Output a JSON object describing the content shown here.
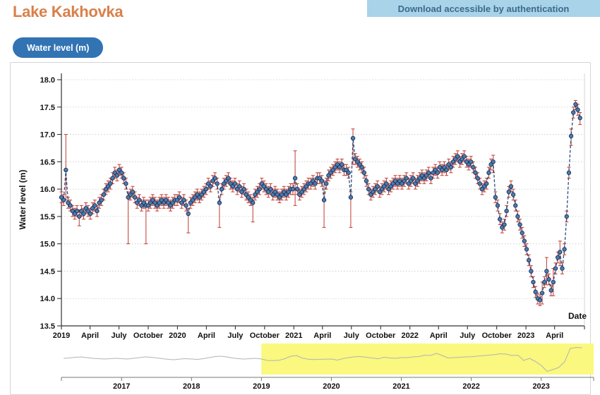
{
  "header": {
    "title": "Lake Kakhovka",
    "banner": "Download accessible by authentication",
    "tab_button": "Water level (m)"
  },
  "chart_data": {
    "type": "scatter",
    "title": "",
    "xlabel": "Date",
    "ylabel": "Water level (m)",
    "ylim": [
      13.5,
      18.0
    ],
    "grid": "horizontal-dotted",
    "legend": "none",
    "y_ticks": [
      13.5,
      14.0,
      14.5,
      15.0,
      15.5,
      16.0,
      16.5,
      17.0,
      17.5,
      18.0
    ],
    "x_ticks": [
      {
        "label": "2019",
        "day": 0
      },
      {
        "label": "April",
        "day": 90
      },
      {
        "label": "July",
        "day": 181
      },
      {
        "label": "October",
        "day": 273
      },
      {
        "label": "2020",
        "day": 365
      },
      {
        "label": "April",
        "day": 456
      },
      {
        "label": "July",
        "day": 547
      },
      {
        "label": "October",
        "day": 639
      },
      {
        "label": "2021",
        "day": 731
      },
      {
        "label": "April",
        "day": 821
      },
      {
        "label": "July",
        "day": 912
      },
      {
        "label": "October",
        "day": 1004
      },
      {
        "label": "2022",
        "day": 1096
      },
      {
        "label": "April",
        "day": 1186
      },
      {
        "label": "July",
        "day": 1277
      },
      {
        "label": "October",
        "day": 1369
      },
      {
        "label": "2023",
        "day": 1461
      },
      {
        "label": "April",
        "day": 1551
      }
    ],
    "series_start_date": "2019-01-01",
    "interval_days": 7,
    "values": [
      15.85,
      15.8,
      16.35,
      15.75,
      15.7,
      15.6,
      15.55,
      15.6,
      15.5,
      15.6,
      15.55,
      15.65,
      15.6,
      15.55,
      15.65,
      15.7,
      15.6,
      15.75,
      15.8,
      15.9,
      16.0,
      16.05,
      16.1,
      16.2,
      16.3,
      16.25,
      16.35,
      16.3,
      16.2,
      16.1,
      15.85,
      15.9,
      15.95,
      15.85,
      15.75,
      15.8,
      15.7,
      15.75,
      15.7,
      15.7,
      15.75,
      15.8,
      15.75,
      15.7,
      15.75,
      15.8,
      15.75,
      15.8,
      15.75,
      15.7,
      15.75,
      15.8,
      15.8,
      15.85,
      15.75,
      15.8,
      15.7,
      15.55,
      15.75,
      15.8,
      15.85,
      15.9,
      15.85,
      15.9,
      15.95,
      16.0,
      16.1,
      16.05,
      16.15,
      16.2,
      16.1,
      15.75,
      16.0,
      16.1,
      16.15,
      16.2,
      16.1,
      16.05,
      16.1,
      16.0,
      16.05,
      15.95,
      16.0,
      15.9,
      15.85,
      15.8,
      15.75,
      15.9,
      15.95,
      16.0,
      16.1,
      16.05,
      16.0,
      15.95,
      16.0,
      15.9,
      15.95,
      15.9,
      15.85,
      15.9,
      15.95,
      15.9,
      15.95,
      16.0,
      16.0,
      16.2,
      16.0,
      15.9,
      15.95,
      16.0,
      16.05,
      16.1,
      16.1,
      16.15,
      16.1,
      16.2,
      16.2,
      16.15,
      15.8,
      16.1,
      16.25,
      16.3,
      16.35,
      16.4,
      16.45,
      16.4,
      16.45,
      16.35,
      16.35,
      16.3,
      15.85,
      16.93,
      16.55,
      16.5,
      16.45,
      16.4,
      16.3,
      16.15,
      16.0,
      15.9,
      15.95,
      16.0,
      16.05,
      15.95,
      16.0,
      16.05,
      16.1,
      16.0,
      16.05,
      16.1,
      16.15,
      16.1,
      16.15,
      16.1,
      16.15,
      16.2,
      16.1,
      16.15,
      16.2,
      16.1,
      16.15,
      16.2,
      16.25,
      16.2,
      16.25,
      16.3,
      16.2,
      16.3,
      16.35,
      16.3,
      16.4,
      16.35,
      16.4,
      16.35,
      16.45,
      16.4,
      16.5,
      16.55,
      16.6,
      16.5,
      16.55,
      16.6,
      16.5,
      16.45,
      16.5,
      16.4,
      16.3,
      16.2,
      16.1,
      16.0,
      16.05,
      16.1,
      16.3,
      16.45,
      16.5,
      15.85,
      15.7,
      15.45,
      15.3,
      15.35,
      15.6,
      15.95,
      16.05,
      15.9,
      15.7,
      15.5,
      15.35,
      15.2,
      15.05,
      14.9,
      14.7,
      14.5,
      14.3,
      14.12,
      14.0,
      13.97,
      14.1,
      14.3,
      14.5,
      14.35,
      14.15,
      14.3,
      14.55,
      14.75,
      14.85,
      14.55,
      14.9,
      15.5,
      16.3,
      16.97,
      17.4,
      17.55,
      17.45,
      17.3
    ],
    "err_default": 0.1,
    "outlier_errors": {
      "2": [
        15.8,
        17.0
      ],
      "8": [
        15.33,
        15.62
      ],
      "30": [
        15.0,
        15.95
      ],
      "38": [
        15.0,
        15.8
      ],
      "57": [
        15.2,
        15.65
      ],
      "71": [
        15.3,
        15.85
      ],
      "86": [
        15.4,
        15.85
      ],
      "105": [
        15.7,
        16.7
      ],
      "118": [
        15.3,
        16.15
      ],
      "130": [
        15.3,
        15.95
      ],
      "131": [
        16.45,
        17.1
      ],
      "194": [
        16.3,
        16.62
      ],
      "216": [
        13.9,
        14.3
      ],
      "218": [
        14.25,
        14.75
      ],
      "221": [
        14.05,
        14.55
      ],
      "224": [
        14.6,
        15.05
      ],
      "229": [
        16.8,
        17.1
      ],
      "231": [
        17.45,
        17.62
      ],
      "233": [
        17.18,
        17.4
      ]
    },
    "colors": {
      "marker": "#4e7cab",
      "marker_edge": "#1c3a66",
      "line": "#2b4d7e",
      "error": "#bf3b32",
      "grid": "#c9c9c9",
      "axis": "#333333"
    },
    "overview": {
      "x_ticks": [
        "2017",
        "2018",
        "2019",
        "2020",
        "2021",
        "2022",
        "2023"
      ],
      "start_year": 2016.17,
      "step_years": 0.0833,
      "highlight_from_year": 2019,
      "highlight_color": "#faf87e",
      "line_color": "#b3b3b3",
      "values": [
        15.9,
        15.95,
        16.05,
        16.1,
        16.0,
        15.9,
        15.85,
        15.8,
        15.85,
        15.9,
        15.85,
        15.8,
        15.9,
        16.0,
        16.1,
        16.05,
        15.95,
        15.85,
        15.75,
        15.7,
        15.8,
        15.85,
        15.8,
        15.75,
        15.85,
        16.0,
        16.15,
        16.2,
        16.1,
        15.95,
        15.85,
        15.8,
        15.85,
        15.9,
        15.8,
        15.6,
        15.58,
        15.62,
        15.85,
        16.2,
        16.3,
        15.92,
        15.78,
        15.72,
        15.76,
        15.78,
        15.8,
        15.65,
        15.87,
        16.0,
        16.12,
        16.15,
        16.05,
        15.95,
        15.82,
        16.05,
        15.95,
        15.9,
        16.0,
        16.0,
        16.1,
        16.15,
        16.35,
        16.3,
        16.6,
        16.3,
        15.95,
        16.0,
        16.05,
        16.1,
        16.12,
        16.2,
        16.28,
        16.35,
        16.42,
        16.55,
        16.5,
        16.3,
        16.35,
        15.6,
        15.9,
        15.45,
        14.9,
        14.05,
        14.3,
        14.6,
        15.4,
        17.3,
        17.45,
        17.4
      ]
    }
  }
}
